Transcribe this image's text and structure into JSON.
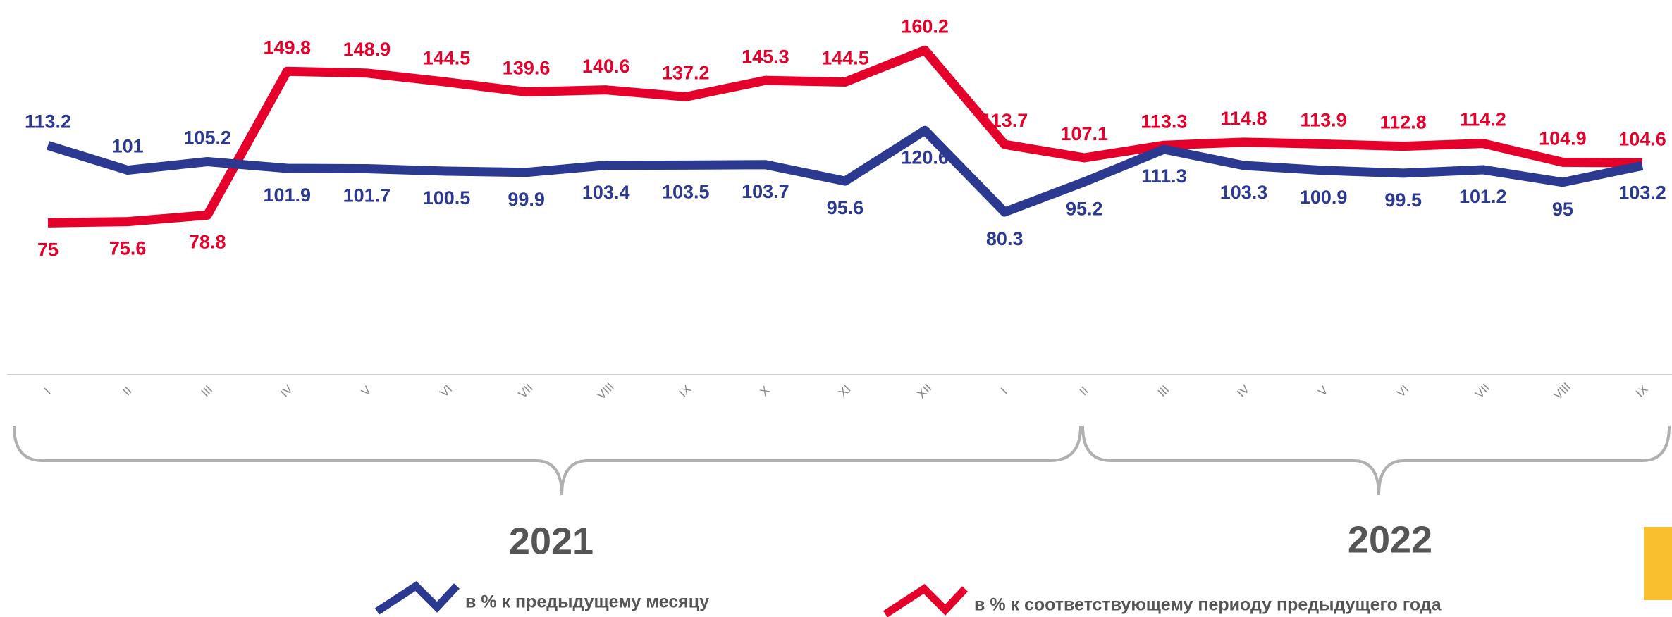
{
  "chart_data": {
    "type": "line",
    "categories": [
      "I",
      "II",
      "III",
      "IV",
      "V",
      "VI",
      "VII",
      "VIII",
      "IX",
      "X",
      "XI",
      "XII",
      "I",
      "II",
      "III",
      "IV",
      "V",
      "VI",
      "VII",
      "VIII",
      "IX"
    ],
    "series": [
      {
        "name": "в % к предыдущему месяцу",
        "color": "#2b3990",
        "values": [
          113.2,
          101.0,
          105.2,
          101.9,
          101.7,
          100.5,
          99.9,
          103.4,
          103.5,
          103.7,
          95.6,
          120.6,
          80.3,
          95.2,
          111.3,
          103.3,
          100.9,
          99.5,
          101.2,
          95.0,
          103.2
        ]
      },
      {
        "name": "в % к соответствующему периоду предыдущего года",
        "color": "#e4002b",
        "values": [
          75.0,
          75.6,
          78.8,
          149.8,
          148.9,
          144.5,
          139.6,
          140.6,
          137.2,
          145.3,
          144.5,
          160.2,
          113.7,
          107.1,
          113.3,
          114.8,
          113.9,
          112.8,
          114.2,
          104.9,
          104.6
        ]
      }
    ],
    "years": [
      "2021",
      "2022"
    ],
    "ylim": [
      0,
      185
    ]
  }
}
